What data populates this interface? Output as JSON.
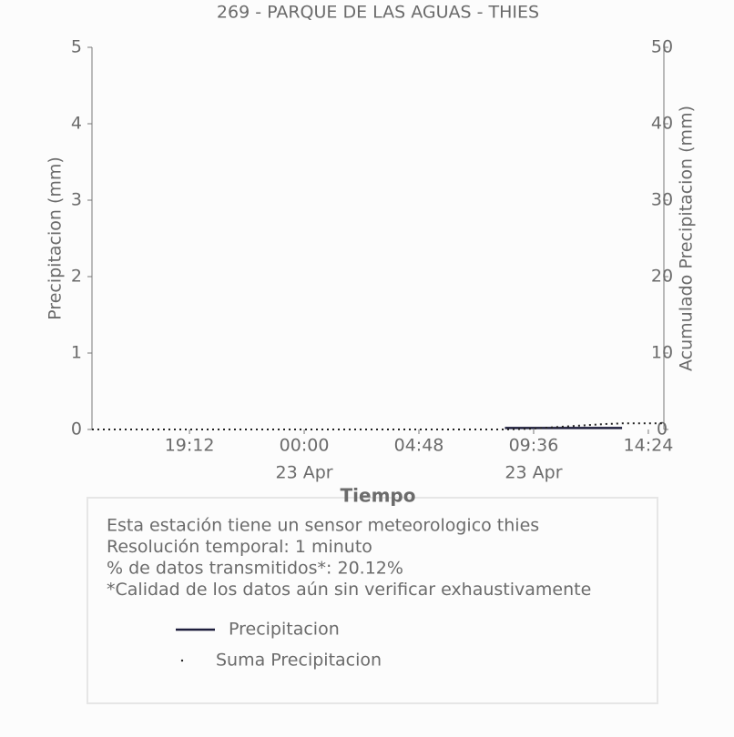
{
  "chart_data": {
    "type": "line",
    "title": "269 - PARQUE DE LAS AGUAS - THIES",
    "xlabel": "Tiempo",
    "ylabel": "Precipitacion (mm)",
    "y2label": "Acumulado Precipitacion (mm)",
    "xlim": [
      -8.88,
      15.05
    ],
    "xticks": [
      {
        "value": -4.8,
        "label": "19:12"
      },
      {
        "value": 0,
        "label": "00:00"
      },
      {
        "value": 4.8,
        "label": "04:48"
      },
      {
        "value": 9.6,
        "label": "09:36"
      },
      {
        "value": 14.4,
        "label": "14:24"
      }
    ],
    "xtick_dates": [
      {
        "value": 0,
        "label": "23 Apr"
      },
      {
        "value": 9.6,
        "label": "23 Apr"
      }
    ],
    "ylim": [
      0,
      5
    ],
    "yticks": [
      0,
      1,
      2,
      3,
      4,
      5
    ],
    "y2lim": [
      0,
      50
    ],
    "y2ticks": [
      0,
      10,
      20,
      30,
      40,
      50
    ],
    "series": [
      {
        "name": "Precipitacion",
        "color": "#1e1e3c",
        "style": "solid",
        "x": [
          8.4,
          9.5,
          10.5,
          11.5,
          12.5,
          13.3
        ],
        "values": [
          0.02,
          0.02,
          0.02,
          0.02,
          0.02,
          0.02
        ]
      },
      {
        "name": "Suma Precipitacion",
        "color": "#222222",
        "style": "dotted",
        "axis": "y2",
        "x": [
          -8.88,
          8.4,
          9.5,
          10.5,
          11.5,
          12.5,
          13.3,
          15.05
        ],
        "values": [
          0,
          0,
          0.1,
          0.3,
          0.5,
          0.7,
          0.8,
          0.8
        ]
      }
    ],
    "notes": [
      "Esta estación tiene un sensor meteorologico thies",
      "Resolución temporal: 1 minuto",
      "% de datos transmitidos*: 20.12%",
      "*Calidad de los datos aún sin verificar exhaustivamente"
    ]
  }
}
